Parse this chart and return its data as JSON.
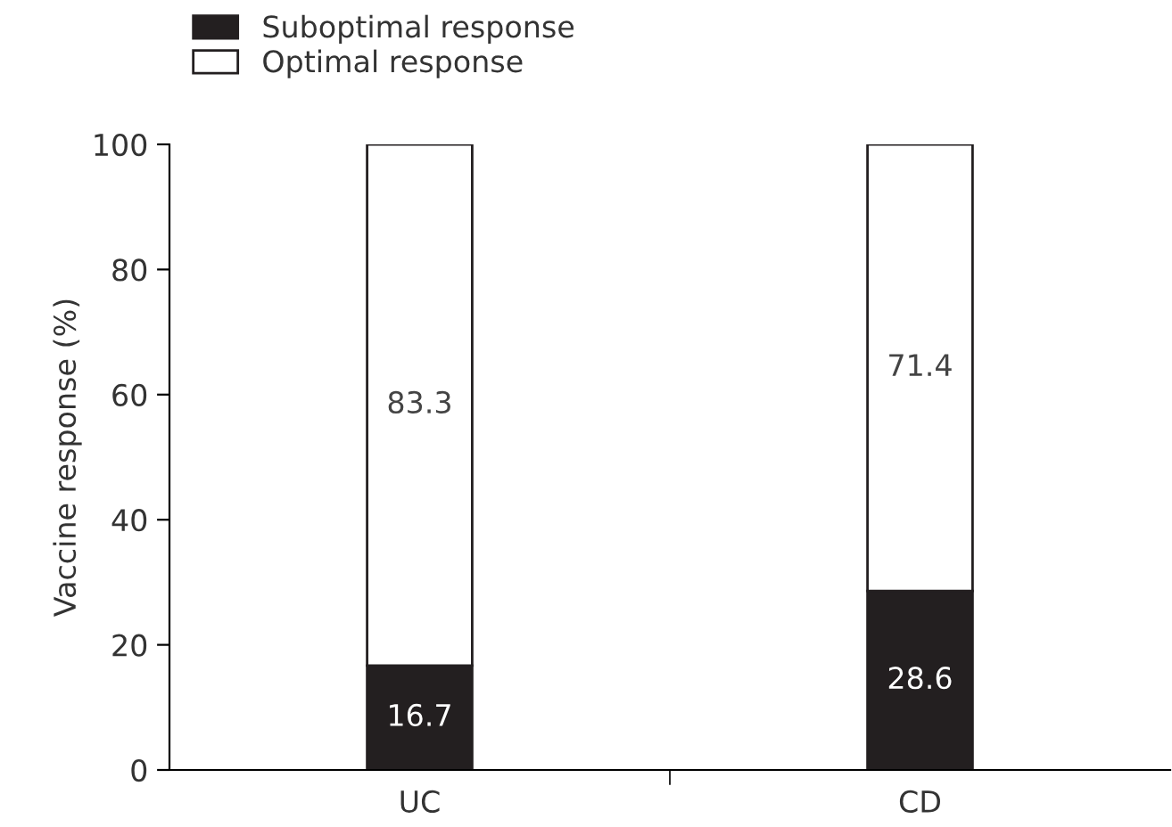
{
  "chart_data": {
    "type": "bar",
    "stacked": true,
    "ylabel": "Vaccine response (%)",
    "categories": [
      "UC",
      "CD"
    ],
    "series": [
      {
        "name": "Suboptimal response",
        "color": "#231f20",
        "values": [
          16.7,
          28.6
        ]
      },
      {
        "name": "Optimal response",
        "color": "#ffffff",
        "values": [
          83.3,
          71.4
        ]
      }
    ],
    "ylim": [
      0,
      100
    ],
    "yticks": [
      0,
      20,
      40,
      60,
      80,
      100
    ],
    "data_labels": true,
    "legend": "top left",
    "grid": false
  }
}
